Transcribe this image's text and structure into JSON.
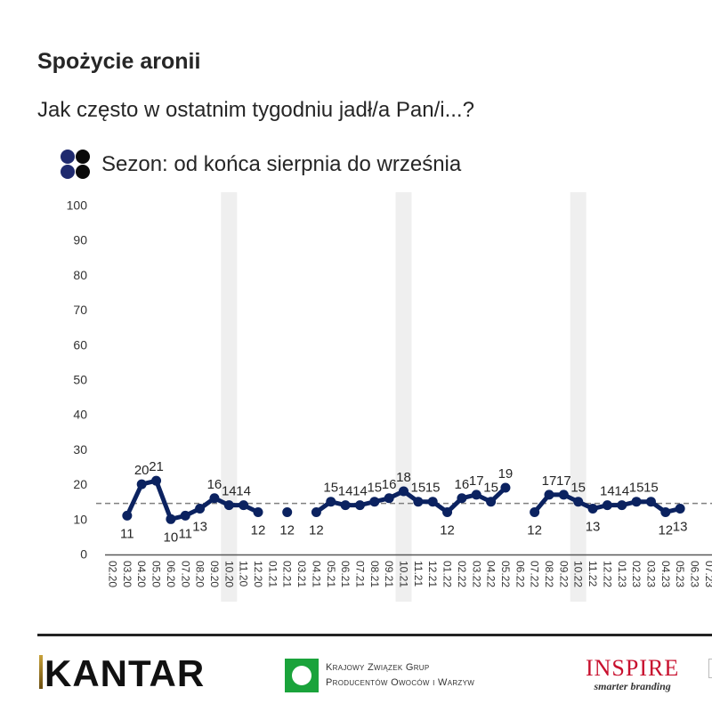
{
  "header": {
    "title": "Spożycie aronii",
    "subtitle": "Jak często w ostatnim tygodniu jadł/a Pan/i...?",
    "legend_label": "Sezon: od końca sierpnia do września"
  },
  "colors": {
    "series": "#0b2260",
    "legend_dot_blue": "#1f2a6e",
    "legend_dot_black": "#0a0a0a",
    "season_band": "#efefef",
    "average_line": "#808080",
    "axis": "#595959"
  },
  "footer": {
    "logos": [
      {
        "name": "KANTAR"
      },
      {
        "name": "Krajowy Związek Grup Producentów Owoców i Warzyw",
        "line1": "Krajowy Związek Grup",
        "line2": "Producentów Owoców i Warzyw"
      },
      {
        "name": "INSPIRE",
        "tagline": "smarter branding"
      }
    ]
  },
  "chart_data": {
    "type": "line",
    "title": "Spożycie aronii",
    "subtitle": "Jak często w ostatnim tygodniu jadł/a Pan/i...?",
    "legend": [
      "Sezon: od końca sierpnia do września"
    ],
    "xlabel": "",
    "ylabel": "",
    "ylim": [
      0,
      100
    ],
    "yticks": [
      0,
      10,
      20,
      30,
      40,
      50,
      60,
      70,
      80,
      90,
      100
    ],
    "grid": false,
    "average_line": 14.5,
    "season_bands": [
      "10.20",
      "10.21",
      "10.22"
    ],
    "categories": [
      "02.20",
      "03.20",
      "04.20",
      "05.20",
      "06.20",
      "07.20",
      "08.20",
      "09.20",
      "10.20",
      "11.20",
      "12.20",
      "01.21",
      "02.21",
      "03.21",
      "04.21",
      "05.21",
      "06.21",
      "07.21",
      "08.21",
      "09.21",
      "10.21",
      "11.21",
      "12.21",
      "01.22",
      "02.22",
      "03.22",
      "04.22",
      "05.22",
      "06.22",
      "07.22",
      "08.22",
      "09.22",
      "10.22",
      "11.22",
      "12.22",
      "01.23",
      "02.23",
      "03.23",
      "04.23",
      "05.23",
      "06.23",
      "07.23"
    ],
    "series": [
      {
        "name": "Spożycie aronii",
        "values": [
          null,
          11,
          20,
          21,
          10,
          11,
          13,
          16,
          14,
          14,
          12,
          null,
          12,
          null,
          12,
          15,
          14,
          14,
          15,
          16,
          18,
          15,
          15,
          12,
          16,
          17,
          15,
          19,
          null,
          12,
          17,
          17,
          15,
          13,
          14,
          14,
          15,
          15,
          12,
          13,
          null,
          null
        ],
        "label_positions": [
          null,
          "below",
          "above",
          "above",
          "below",
          "below",
          "below",
          "above",
          "above",
          "above",
          "below",
          null,
          "below",
          null,
          "below",
          "above",
          "above",
          "above",
          "above",
          "above",
          "above",
          "above",
          "above",
          "below",
          "above",
          "above",
          "above",
          "above",
          null,
          "below",
          "above",
          "above",
          "above",
          "below",
          "above",
          "above",
          "above",
          "above",
          "below",
          "below",
          null,
          null
        ]
      }
    ]
  }
}
